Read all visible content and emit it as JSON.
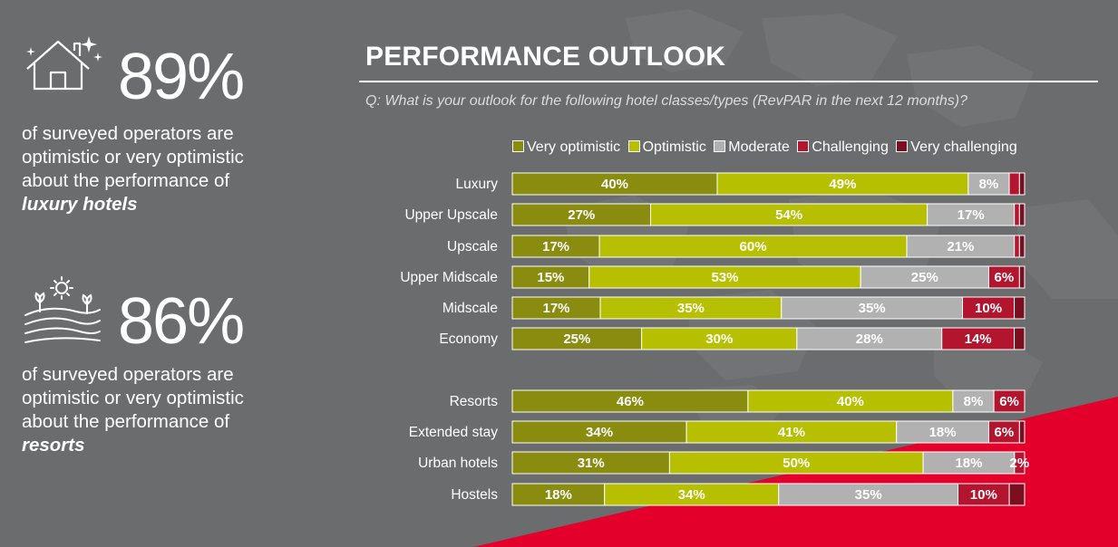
{
  "stats": [
    {
      "value": "89%",
      "line1": "of surveyed operators are",
      "line2": "optimistic or very optimistic",
      "line3": "about the performance of",
      "emphasis": "luxury hotels",
      "icon": "house-sparkle-icon"
    },
    {
      "value": "86%",
      "line1": "of surveyed operators are",
      "line2": "optimistic or very optimistic",
      "line3": "about the performance of",
      "emphasis": "resorts",
      "icon": "landscape-sun-icon"
    }
  ],
  "colors": {
    "very_optimistic": "#8a8c10",
    "optimistic": "#b7c000",
    "moderate": "#b1b1b1",
    "challenging": "#b3152f",
    "very_challenging": "#7b0f20",
    "accent_red": "#e3002b"
  },
  "chart_data": {
    "type": "bar",
    "orientation": "horizontal-stacked-100",
    "title": "PERFORMANCE OUTLOOK",
    "subtitle": "Q: What is your outlook for the following hotel classes/types (RevPAR in the next 12 months)?",
    "series_names": [
      "Very optimistic",
      "Optimistic",
      "Moderate",
      "Challenging",
      "Very challenging"
    ],
    "rows": [
      {
        "label": "Luxury",
        "values": [
          40,
          49,
          8,
          2,
          1
        ],
        "labels": [
          "40%",
          "49%",
          "8%",
          "",
          ""
        ]
      },
      {
        "label": "Upper Upscale",
        "values": [
          27,
          54,
          17,
          1,
          1
        ],
        "labels": [
          "27%",
          "54%",
          "17%",
          "",
          ""
        ]
      },
      {
        "label": "Upscale",
        "values": [
          17,
          60,
          21,
          1,
          1
        ],
        "labels": [
          "17%",
          "60%",
          "21%",
          "",
          ""
        ]
      },
      {
        "label": "Upper Midscale",
        "values": [
          15,
          53,
          25,
          6,
          1
        ],
        "labels": [
          "15%",
          "53%",
          "25%",
          "6%",
          ""
        ]
      },
      {
        "label": "Midscale",
        "values": [
          17,
          35,
          35,
          10,
          2
        ],
        "labels": [
          "17%",
          "35%",
          "35%",
          "10%",
          ""
        ]
      },
      {
        "label": "Economy",
        "values": [
          25,
          30,
          28,
          14,
          2
        ],
        "labels": [
          "25%",
          "30%",
          "28%",
          "14%",
          ""
        ]
      },
      {
        "label": "Resorts",
        "values": [
          46,
          40,
          8,
          6,
          0
        ],
        "labels": [
          "46%",
          "40%",
          "8%",
          "6%",
          ""
        ]
      },
      {
        "label": "Extended stay",
        "values": [
          34,
          41,
          18,
          6,
          1
        ],
        "labels": [
          "34%",
          "41%",
          "18%",
          "6%",
          ""
        ]
      },
      {
        "label": "Urban hotels",
        "values": [
          31,
          50,
          18,
          2,
          0
        ],
        "labels": [
          "31%",
          "50%",
          "18%",
          "2%",
          ""
        ]
      },
      {
        "label": "Hostels",
        "values": [
          18,
          34,
          35,
          10,
          3
        ],
        "labels": [
          "18%",
          "34%",
          "35%",
          "10%",
          ""
        ]
      }
    ],
    "xlim": [
      0,
      100
    ]
  }
}
